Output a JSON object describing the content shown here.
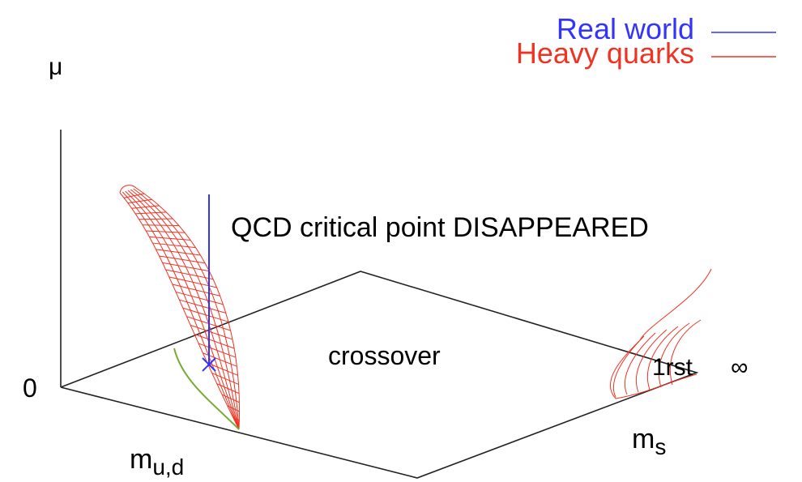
{
  "legend": {
    "items": [
      {
        "label": "Real world",
        "color": "#3333ff"
      },
      {
        "label": "Heavy quarks",
        "color": "#ee3322"
      }
    ]
  },
  "axes": {
    "mu": "μ",
    "zero": "0",
    "mud": {
      "base": "m",
      "sub": "u,d"
    },
    "ms": {
      "base": "m",
      "sub": "s"
    }
  },
  "annotations": {
    "critical": "QCD critical point DISAPPEARED",
    "crossover": "crossover",
    "first": "1rst",
    "infinity": "∞"
  }
}
